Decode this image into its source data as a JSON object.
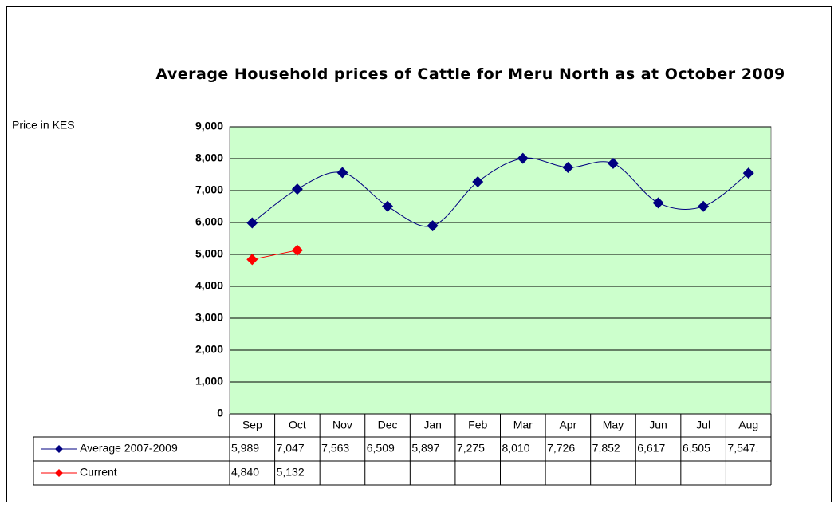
{
  "chart_data": {
    "type": "line",
    "title": "Average Household prices of Cattle for Meru North as at October 2009",
    "y_label": "Price in KES",
    "categories": [
      "Sep",
      "Oct",
      "Nov",
      "Dec",
      "Jan",
      "Feb",
      "Mar",
      "Apr",
      "May",
      "Jun",
      "Jul",
      "Aug"
    ],
    "series": [
      {
        "name": "Average 2007-2009",
        "color": "#000080",
        "values": [
          5989,
          7047,
          7563,
          6509,
          5897,
          7275,
          8010,
          7726,
          7852,
          6617,
          6505,
          7547
        ],
        "value_labels": [
          "5,989",
          "7,047",
          "7,563",
          "6,509",
          "5,897",
          "7,275",
          "8,010",
          "7,726",
          "7,852",
          "6,617",
          "6,505",
          "7,547."
        ]
      },
      {
        "name": "Current",
        "color": "#ff0000",
        "values": [
          4840,
          5132,
          null,
          null,
          null,
          null,
          null,
          null,
          null,
          null,
          null,
          null
        ],
        "value_labels": [
          "4,840",
          "5,132",
          null,
          null,
          null,
          null,
          null,
          null,
          null,
          null,
          null,
          null
        ]
      }
    ],
    "ylim": [
      0,
      9000
    ],
    "yticks": [
      0,
      {
        "value": 1000,
        "label": "1,000"
      },
      {
        "value": 2000,
        "label": "2,000"
      },
      {
        "value": 3000,
        "label": "3,000"
      },
      {
        "value": 4000,
        "label": "4,000"
      },
      {
        "value": 5000,
        "label": "5,000"
      },
      {
        "value": 6000,
        "label": "6,000"
      },
      {
        "value": 7000,
        "label": "7,000"
      },
      {
        "value": 8000,
        "label": "8,000"
      },
      {
        "value": 9000,
        "label": "9,000"
      }
    ],
    "grid": true,
    "plot_background": "#ccffcc",
    "smooth": true
  }
}
